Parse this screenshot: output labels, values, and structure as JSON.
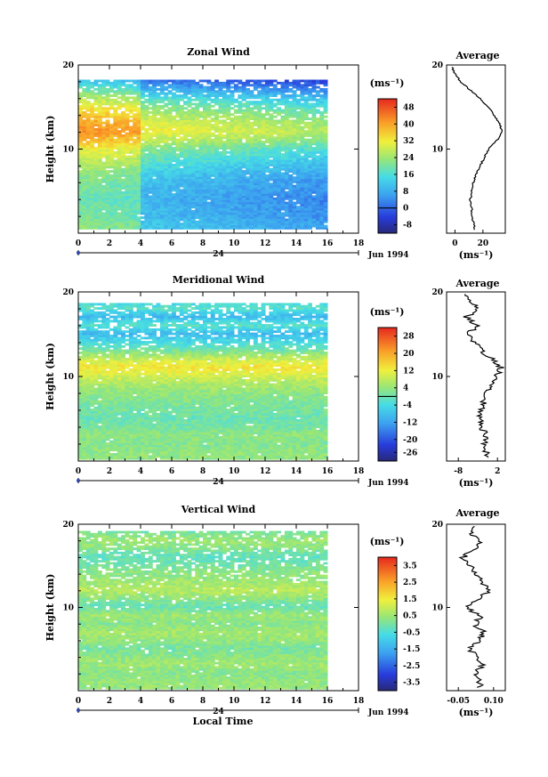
{
  "figure": {
    "xlabel": "Local Time",
    "date_label": "Jun 1994",
    "day_label": "24",
    "average_title": "Average",
    "units_label": "(ms⁻¹)",
    "ylabel": "Height (km)"
  },
  "chart_data": [
    {
      "type": "heatmap",
      "title": "Zonal Wind",
      "xlabel": "",
      "ylabel": "Height (km)",
      "x_ticks": [
        "0",
        "2",
        "4",
        "6",
        "8",
        "10",
        "12",
        "14",
        "16",
        "18"
      ],
      "y_ticks": [
        "10",
        "20"
      ],
      "xlim": [
        0,
        18
      ],
      "ylim": [
        0,
        20
      ],
      "data_x_extent": [
        0,
        16
      ],
      "data_y_extent": [
        0.5,
        18.2
      ],
      "colorbar": {
        "label": "(ms⁻¹)",
        "ticks": [
          "-8",
          "0",
          "8",
          "16",
          "24",
          "32",
          "40",
          "48"
        ],
        "range": [
          -12,
          52
        ],
        "zero_line": 0
      },
      "profile": {
        "title": "Average",
        "xlabel": "(ms⁻¹)",
        "x_ticks": [
          "0",
          "20"
        ],
        "xlim": [
          -6,
          36
        ],
        "heights": [
          1,
          2,
          3,
          4,
          5,
          6,
          7,
          8,
          9,
          10,
          11,
          12,
          13,
          14,
          15,
          16,
          17,
          18,
          19,
          20
        ],
        "values": [
          14,
          12,
          12,
          11,
          12,
          13,
          15,
          18,
          21,
          24,
          30,
          34,
          32,
          28,
          24,
          18,
          11,
          4,
          0,
          -3
        ]
      }
    },
    {
      "type": "heatmap",
      "title": "Meridional Wind",
      "xlabel": "",
      "ylabel": "Height (km)",
      "x_ticks": [
        "0",
        "2",
        "4",
        "6",
        "8",
        "10",
        "12",
        "14",
        "16",
        "18"
      ],
      "y_ticks": [
        "10",
        "20"
      ],
      "xlim": [
        0,
        18
      ],
      "ylim": [
        0,
        20
      ],
      "data_x_extent": [
        0,
        16
      ],
      "data_y_extent": [
        0.2,
        18.5
      ],
      "colorbar": {
        "label": "(ms⁻¹)",
        "ticks": [
          "-26",
          "-20",
          "-12",
          "-4",
          "4",
          "12",
          "20",
          "28"
        ],
        "range": [
          -30,
          32
        ],
        "zero_line": 0
      },
      "profile": {
        "title": "Average",
        "xlabel": "(ms⁻¹)",
        "x_ticks": [
          "-8",
          "2"
        ],
        "xlim": [
          -11,
          4
        ],
        "heights": [
          1,
          2,
          3,
          4,
          5,
          6,
          7,
          8,
          9,
          10,
          11,
          12,
          13,
          14,
          15,
          16,
          17,
          18,
          19,
          20
        ],
        "values": [
          -1,
          -1.5,
          -1,
          -2,
          -2.5,
          -2,
          -1.5,
          -1,
          0,
          1.5,
          3,
          1,
          -2,
          -4,
          -6,
          -3,
          -6,
          -3,
          -5,
          -7
        ]
      }
    },
    {
      "type": "heatmap",
      "title": "Vertical Wind",
      "xlabel": "Local Time",
      "ylabel": "Height (km)",
      "x_ticks": [
        "0",
        "2",
        "4",
        "6",
        "8",
        "10",
        "12",
        "14",
        "16",
        "18"
      ],
      "y_ticks": [
        "10",
        "20"
      ],
      "xlim": [
        0,
        18
      ],
      "ylim": [
        0,
        20
      ],
      "data_x_extent": [
        0,
        16
      ],
      "data_y_extent": [
        0.2,
        19.2
      ],
      "colorbar": {
        "label": "(ms⁻¹)",
        "ticks": [
          "-3.5",
          "-2.5",
          "-1.5",
          "-0.5",
          "0.5",
          "1.5",
          "2.5",
          "3.5"
        ],
        "range": [
          -4,
          4
        ],
        "zero_line": null
      },
      "profile": {
        "title": "Average",
        "xlabel": "(ms⁻¹)",
        "x_ticks": [
          "-0.05",
          "0.10"
        ],
        "xlim": [
          -0.1,
          0.15
        ],
        "heights": [
          1,
          2,
          3,
          4,
          5,
          6,
          7,
          8,
          9,
          10,
          11,
          12,
          13,
          14,
          15,
          16,
          17,
          18,
          19,
          20
        ],
        "values": [
          0.04,
          0.02,
          0.05,
          0.03,
          0.0,
          0.04,
          0.06,
          0.02,
          0.05,
          -0.02,
          0.03,
          0.08,
          0.05,
          0.03,
          0.0,
          -0.03,
          0.02,
          0.05,
          0.0,
          0.03
        ]
      }
    }
  ]
}
